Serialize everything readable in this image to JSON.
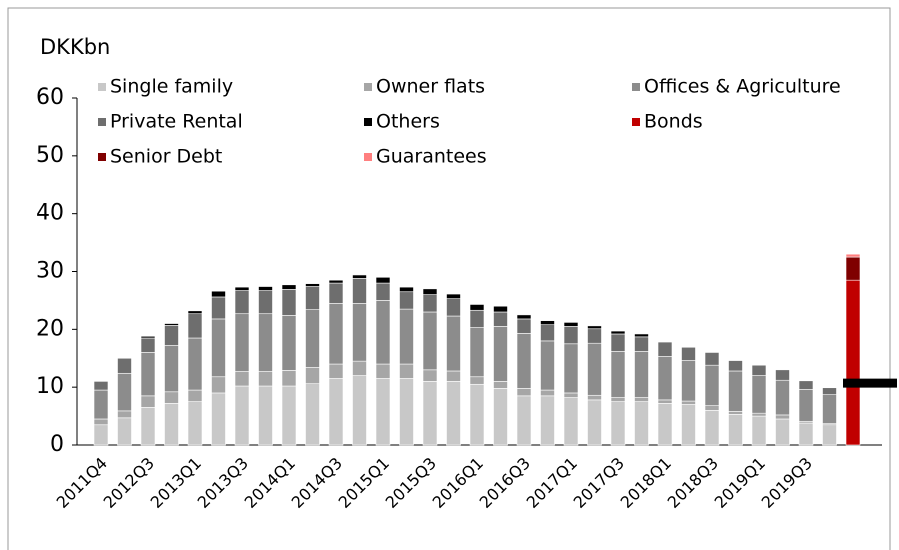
{
  "chart_data": {
    "type": "stacked_bar",
    "y_label": "DKKbn",
    "categories": [
      "2011Q4",
      null,
      "2012Q3",
      null,
      "2013Q1",
      null,
      "2013Q3",
      null,
      "2014Q1",
      null,
      "2014Q3",
      null,
      "2015Q1",
      null,
      "2015Q3",
      null,
      "2016Q1",
      null,
      "2016Q3",
      null,
      "2017Q1",
      null,
      "2017Q3",
      null,
      "2018Q1",
      null,
      "2018Q3",
      null,
      "2019Q1",
      null,
      "2019Q3",
      null,
      null
    ],
    "series": [
      {
        "name": "Single family",
        "color": "#c8c8c8",
        "values": [
          3.5,
          4.7,
          6.5,
          7.2,
          7.5,
          9.0,
          10.2,
          10.2,
          10.2,
          10.6,
          11.5,
          12.0,
          11.5,
          11.5,
          11.0,
          11.0,
          10.5,
          9.8,
          8.5,
          8.5,
          8.2,
          7.8,
          7.5,
          7.5,
          7.2,
          7.0,
          6.0,
          5.3,
          5.0,
          4.5,
          3.8,
          3.5,
          0
        ]
      },
      {
        "name": "Owner flats",
        "color": "#a6a6a6",
        "values": [
          1.0,
          1.2,
          2.0,
          2.0,
          2.0,
          2.8,
          2.5,
          2.5,
          2.7,
          2.8,
          2.5,
          2.5,
          2.5,
          2.5,
          2.0,
          1.8,
          1.3,
          1.2,
          1.3,
          1.0,
          0.8,
          0.8,
          0.7,
          0.7,
          0.6,
          0.6,
          0.8,
          0.5,
          0.5,
          0.7,
          0.3,
          0.2,
          0
        ]
      },
      {
        "name": "Offices & Agriculture",
        "color": "#8c8c8c",
        "values": [
          5.0,
          6.5,
          7.5,
          8.0,
          9.0,
          10.0,
          10.0,
          10.0,
          9.5,
          10.0,
          10.5,
          10.0,
          11.0,
          9.5,
          10.0,
          9.5,
          8.5,
          9.5,
          9.5,
          8.5,
          8.5,
          9.0,
          8.0,
          8.0,
          7.5,
          7.0,
          7.0,
          7.0,
          6.5,
          6.0,
          5.5,
          5.0,
          0
        ]
      },
      {
        "name": "Private Rental",
        "color": "#6e6e6e",
        "values": [
          1.5,
          2.6,
          2.5,
          3.5,
          4.2,
          3.8,
          4.0,
          4.0,
          4.5,
          4.0,
          3.5,
          4.3,
          3.0,
          3.0,
          3.0,
          3.0,
          3.0,
          2.5,
          2.5,
          2.8,
          3.0,
          2.5,
          3.0,
          2.5,
          2.5,
          2.3,
          2.2,
          1.8,
          1.8,
          1.8,
          1.5,
          1.2,
          0
        ]
      },
      {
        "name": "Others",
        "color": "#000000",
        "values": [
          0,
          0,
          0.3,
          0.3,
          0.5,
          1.0,
          0.6,
          0.7,
          0.8,
          0.5,
          0.5,
          0.6,
          1.0,
          0.8,
          1.0,
          0.8,
          1.0,
          1.0,
          0.7,
          0.7,
          0.7,
          0.5,
          0.5,
          0.5,
          0,
          0,
          0,
          0,
          0,
          0,
          0,
          0,
          0
        ]
      },
      {
        "name": "Bonds",
        "color": "#c00000",
        "values": [
          0,
          0,
          0,
          0,
          0,
          0,
          0,
          0,
          0,
          0,
          0,
          0,
          0,
          0,
          0,
          0,
          0,
          0,
          0,
          0,
          0,
          0,
          0,
          0,
          0,
          0,
          0,
          0,
          0,
          0,
          0,
          0,
          28.5
        ]
      },
      {
        "name": "Senior Debt",
        "color": "#7f0000",
        "values": [
          0,
          0,
          0,
          0,
          0,
          0,
          0,
          0,
          0,
          0,
          0,
          0,
          0,
          0,
          0,
          0,
          0,
          0,
          0,
          0,
          0,
          0,
          0,
          0,
          0,
          0,
          0,
          0,
          0,
          0,
          0,
          0,
          4.0
        ]
      },
      {
        "name": "Guarantees",
        "color": "#ff7f7f",
        "values": [
          0,
          0,
          0,
          0,
          0,
          0,
          0,
          0,
          0,
          0,
          0,
          0,
          0,
          0,
          0,
          0,
          0,
          0,
          0,
          0,
          0,
          0,
          0,
          0,
          0,
          0,
          0,
          0,
          0,
          0,
          0,
          0,
          0.5
        ]
      }
    ],
    "reference_line": {
      "value": 10.7,
      "color": "#000000"
    },
    "ylim": [
      0,
      60
    ],
    "yticks": [
      0,
      10,
      20,
      30,
      40,
      50,
      60
    ]
  }
}
